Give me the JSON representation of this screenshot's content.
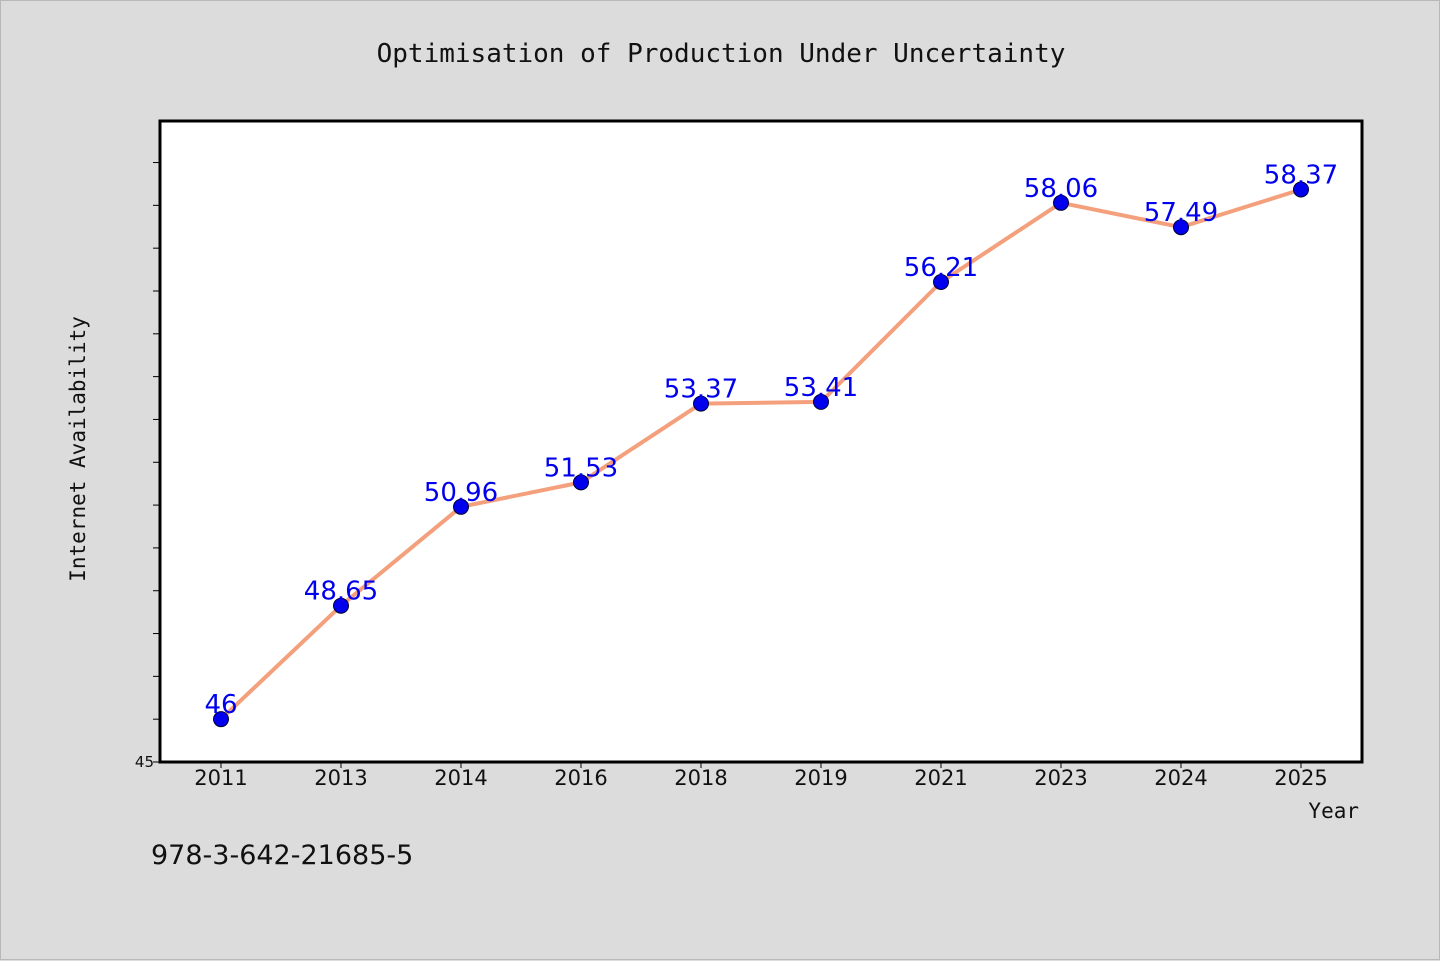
{
  "chart_data": {
    "type": "line",
    "title": "Optimisation of Production Under Uncertainty",
    "xlabel": "Year",
    "ylabel": "Internet Availability",
    "x": [
      "2011",
      "2013",
      "2014",
      "2016",
      "2018",
      "2019",
      "2021",
      "2023",
      "2024",
      "2025"
    ],
    "series": [
      {
        "values": [
          46,
          48.65,
          50.96,
          51.53,
          53.37,
          53.41,
          56.21,
          58.06,
          57.49,
          58.37
        ],
        "data_labels": [
          "46",
          "48.65",
          "50.96",
          "51.53",
          "53.37",
          "53.41",
          "56.21",
          "58.06",
          "57.49",
          "58.37"
        ]
      }
    ],
    "ylim": [
      45,
      59.97
    ],
    "y_tick_labels": [
      "45"
    ],
    "y_minor_tick_step": 1,
    "grid": false,
    "line_color": "#f4a07c",
    "marker_color": "#0000ee",
    "label_color": "#0000ee"
  },
  "footer": {
    "text": "978-3-642-21685-5"
  }
}
